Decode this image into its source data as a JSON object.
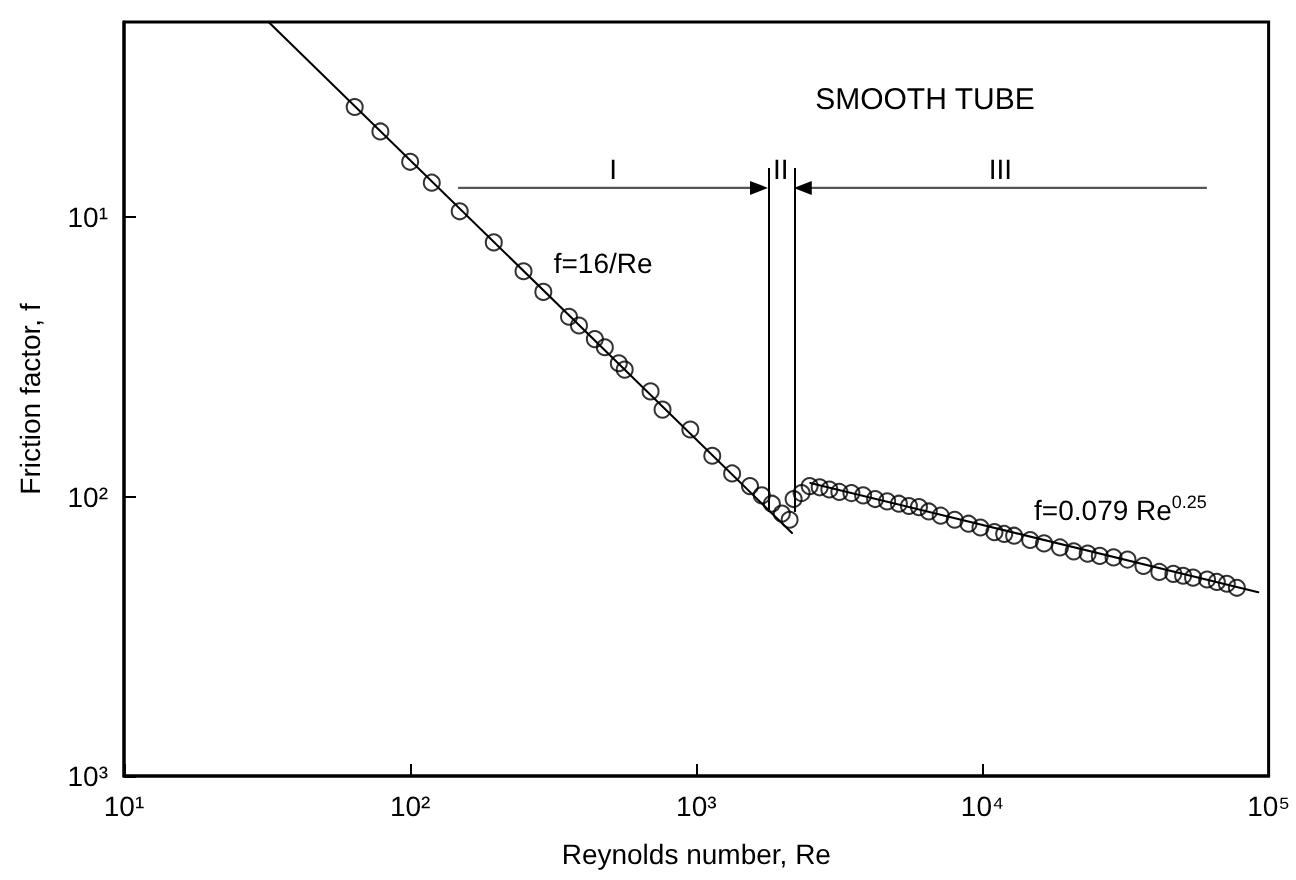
{
  "chart_data": {
    "type": "scatter",
    "xlabel": "Reynolds number, Re",
    "ylabel": "Friction factor, f",
    "log": "xy",
    "grid": false,
    "xlim": [
      10,
      100000
    ],
    "xticks": [
      {
        "value": 10,
        "label": "10¹"
      },
      {
        "value": 100,
        "label": "10²"
      },
      {
        "value": 1000,
        "label": "10³"
      },
      {
        "value": 10000,
        "label": "10⁴"
      },
      {
        "value": 100000,
        "label": "10⁵"
      }
    ],
    "ylim": [
      1000,
      2
    ],
    "yticks": [
      {
        "value": 10,
        "label": "10¹"
      },
      {
        "value": 100,
        "label": "10²"
      },
      {
        "value": 1000,
        "label": "10³"
      }
    ],
    "annotations": [
      "SMOOTH TUBE",
      "f=16/Re",
      "f=0.079 Re$^{0.25}$",
      "I",
      "II",
      "III"
    ],
    "ref_lines": [
      {
        "axis": "x",
        "value": 1780
      },
      {
        "axis": "x",
        "value": 2190
      }
    ],
    "series": [
      {
        "type": "scatter",
        "color": "#000000",
        "marker": "circle",
        "x": [
          64,
          78.7,
          100,
          119,
          149,
          196,
          249,
          292,
          359,
          389,
          442,
          479,
          536,
          562,
          692,
          762,
          953,
          1137,
          1334,
          1540,
          1694,
          1837,
          1990,
          2118,
          2188,
          2333,
          2489,
          2698,
          2917,
          3162,
          3483,
          3828,
          4217,
          4645,
          5105,
          5533,
          5998,
          6494,
          7145,
          7998,
          8936,
          9840,
          11010,
          11910,
          12900,
          14680,
          16410,
          18660,
          20840,
          23310,
          25700,
          28710,
          32120,
          36520,
          41500,
          46450,
          50250,
          54450,
          60950,
          65920,
          71450,
          77450
        ],
        "values": [
          4.03,
          4.93,
          6.33,
          7.52,
          9.52,
          12.3,
          15.6,
          18.5,
          22.7,
          24.4,
          27.3,
          29.2,
          33.3,
          35.1,
          42.0,
          48.8,
          57.5,
          71.4,
          82.6,
          91.7,
          99.0,
          106,
          115,
          121,
          102,
          97.1,
          91.7,
          92.6,
          94.3,
          96.2,
          97.1,
          99.0,
          102,
          104,
          106,
          108,
          109,
          113,
          117,
          121,
          125,
          129,
          134,
          136,
          138,
          143,
          147,
          152,
          157,
          160,
          163,
          165,
          168,
          177,
          186,
          189,
          192,
          195,
          198,
          202,
          205,
          212
        ]
      },
      {
        "type": "line",
        "color": "#000000",
        "x": [
          32,
          2160
        ],
        "values": [
          2,
          135
        ]
      },
      {
        "type": "line",
        "color": "#000000",
        "x": [
          2500,
          92000
        ],
        "values": [
          89.3,
          220
        ]
      }
    ]
  }
}
